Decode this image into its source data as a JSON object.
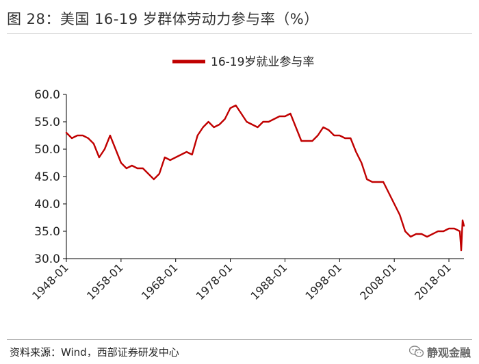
{
  "figure_title": "图 28：美国 16-19 岁群体劳动力参与率（%）",
  "source_note": "资料来源：Wind，西部证券研发中心",
  "watermark": "静观金融",
  "colors": {
    "series": "#c00000",
    "axis": "#000000",
    "text": "#222222"
  },
  "chart_data": {
    "type": "line",
    "title": "",
    "xlabel": "",
    "ylabel": "",
    "ylim": [
      30.0,
      60.0
    ],
    "yticks": [
      "60.0",
      "55.0",
      "50.0",
      "45.0",
      "40.0",
      "35.0",
      "30.0"
    ],
    "xticks": [
      "1948-01",
      "1958-01",
      "1968-01",
      "1978-01",
      "1988-01",
      "1998-01",
      "2008-01",
      "2018-01"
    ],
    "xlim": [
      "1948-01",
      "2020-10"
    ],
    "grid": false,
    "legend": "top-center",
    "series": [
      {
        "name": "16-19岁就业参与率",
        "color": "#c00000",
        "x": [
          "1948-01",
          "1949-01",
          "1950-01",
          "1951-01",
          "1952-01",
          "1953-01",
          "1954-01",
          "1955-01",
          "1956-01",
          "1957-01",
          "1958-01",
          "1959-01",
          "1960-01",
          "1961-01",
          "1962-01",
          "1963-01",
          "1964-01",
          "1965-01",
          "1966-01",
          "1967-01",
          "1968-01",
          "1969-01",
          "1970-01",
          "1971-01",
          "1972-01",
          "1973-01",
          "1974-01",
          "1975-01",
          "1976-01",
          "1977-01",
          "1978-01",
          "1979-01",
          "1980-01",
          "1981-01",
          "1982-01",
          "1983-01",
          "1984-01",
          "1985-01",
          "1986-01",
          "1987-01",
          "1988-01",
          "1989-01",
          "1990-01",
          "1991-01",
          "1992-01",
          "1993-01",
          "1994-01",
          "1995-01",
          "1996-01",
          "1997-01",
          "1998-01",
          "1999-01",
          "2000-01",
          "2001-01",
          "2002-01",
          "2003-01",
          "2004-01",
          "2005-01",
          "2006-01",
          "2007-01",
          "2008-01",
          "2009-01",
          "2010-01",
          "2011-01",
          "2012-01",
          "2013-01",
          "2014-01",
          "2015-01",
          "2016-01",
          "2017-01",
          "2018-01",
          "2019-01",
          "2020-01",
          "2020-04",
          "2020-07",
          "2020-10"
        ],
        "values": [
          53.0,
          52.0,
          52.5,
          52.5,
          52.0,
          51.0,
          48.5,
          50.0,
          52.5,
          50.0,
          47.5,
          46.5,
          47.0,
          46.5,
          46.5,
          45.5,
          44.5,
          45.5,
          48.5,
          48.0,
          48.5,
          49.0,
          49.5,
          49.0,
          52.5,
          54.0,
          55.0,
          54.0,
          54.5,
          55.5,
          57.5,
          58.0,
          56.5,
          55.0,
          54.5,
          54.0,
          55.0,
          55.0,
          55.5,
          56.0,
          56.0,
          56.5,
          54.0,
          51.5,
          51.5,
          51.5,
          52.5,
          54.0,
          53.5,
          52.5,
          52.5,
          52.0,
          52.0,
          49.5,
          47.5,
          44.5,
          44.0,
          44.0,
          44.0,
          42.0,
          40.0,
          38.0,
          35.0,
          34.0,
          34.5,
          34.5,
          34.0,
          34.5,
          35.0,
          35.0,
          35.5,
          35.5,
          35.0,
          31.5,
          37.0,
          36.0
        ]
      }
    ]
  }
}
